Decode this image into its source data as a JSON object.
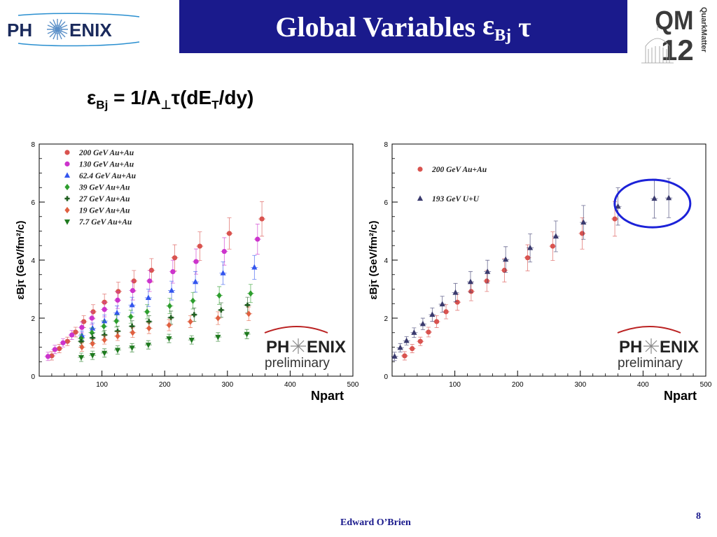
{
  "header": {
    "logo_left_text_a": "PH",
    "logo_left_text_b": "ENIX",
    "title_main": "Global Variables",
    "title_eps": "ε",
    "title_eps_sub": "Bj",
    "title_tau": "τ",
    "logo_right_top": "QM",
    "logo_right_bottom": "12",
    "logo_right_side": "QuarkMatter"
  },
  "formula": {
    "eps": "ε",
    "eps_sub": "Bj",
    "eq": " = 1/A",
    "perp": "⊥",
    "tau": "τ",
    "de": "(dE",
    "de_sub": "T",
    "tail": "/dy)"
  },
  "watermark": {
    "line1a": "PH",
    "line1b": "ENIX",
    "line2": "preliminary"
  },
  "colors": {
    "title_bar": "#1a1a8c",
    "footer": "#1a1a8c"
  },
  "chart_data": [
    {
      "type": "scatter",
      "ylabel": "εBjτ (GeV/fm²/c)",
      "xlabel": "Npart",
      "xlim": [
        0,
        500
      ],
      "ylim": [
        0,
        8
      ],
      "xticks": [
        100,
        200,
        300,
        400,
        500
      ],
      "yticks": [
        0,
        2,
        4,
        6,
        8
      ],
      "legend_position": "top-left",
      "series": [
        {
          "name": "200  GeV Au+Au",
          "marker": "circle",
          "color": "#d9534f",
          "x": [
            20,
            32,
            45,
            58,
            71,
            86,
            104,
            126,
            151,
            179,
            216,
            256,
            303,
            355
          ],
          "y": [
            0.7,
            0.95,
            1.2,
            1.52,
            1.88,
            2.22,
            2.55,
            2.92,
            3.28,
            3.65,
            4.08,
            4.48,
            4.92,
            5.42
          ]
        },
        {
          "name": "130  GeV Au+Au",
          "marker": "circle",
          "color": "#cc33cc",
          "x": [
            14,
            25,
            38,
            52,
            68,
            84,
            104,
            125,
            149,
            176,
            213,
            250,
            295,
            348
          ],
          "y": [
            0.68,
            0.92,
            1.15,
            1.42,
            1.68,
            2.0,
            2.3,
            2.62,
            2.95,
            3.28,
            3.6,
            3.95,
            4.3,
            4.72
          ]
        },
        {
          "name": "62.4 GeV Au+Au",
          "marker": "triangle",
          "color": "#3355ee",
          "x": [
            68,
            85,
            104,
            124,
            148,
            174,
            211,
            249,
            293,
            343
          ],
          "y": [
            1.4,
            1.65,
            1.9,
            2.18,
            2.45,
            2.7,
            2.95,
            3.25,
            3.55,
            3.75
          ]
        },
        {
          "name": "39   GeV Au+Au",
          "marker": "diamond",
          "color": "#2e9e2e",
          "x": [
            67,
            84,
            103,
            123,
            146,
            172,
            208,
            245,
            287,
            337
          ],
          "y": [
            1.3,
            1.5,
            1.72,
            1.9,
            2.05,
            2.22,
            2.42,
            2.6,
            2.78,
            2.85
          ]
        },
        {
          "name": "27   GeV Au+Au",
          "marker": "cross",
          "color": "#1f5e1f",
          "x": [
            67,
            85,
            104,
            125,
            148,
            175,
            210,
            247,
            290,
            332
          ],
          "y": [
            1.2,
            1.32,
            1.42,
            1.55,
            1.72,
            1.88,
            2.02,
            2.12,
            2.28,
            2.45
          ]
        },
        {
          "name": "19   GeV Au+Au",
          "marker": "diamond",
          "color": "#e06040",
          "x": [
            68,
            85,
            104,
            125,
            149,
            175,
            207,
            241,
            285,
            334
          ],
          "y": [
            1.0,
            1.12,
            1.25,
            1.38,
            1.5,
            1.65,
            1.76,
            1.88,
            2.0,
            2.15
          ]
        },
        {
          "name": "7.7  GeV Au+Au",
          "marker": "triangle-down",
          "color": "#1f7a1f",
          "x": [
            67,
            85,
            104,
            125,
            148,
            174,
            207,
            243,
            285,
            331
          ],
          "y": [
            0.65,
            0.72,
            0.8,
            0.9,
            0.98,
            1.08,
            1.3,
            1.25,
            1.35,
            1.45
          ]
        }
      ]
    },
    {
      "type": "scatter",
      "ylabel": "εBjτ (GeV/fm²/c)",
      "xlabel": "Npart",
      "xlim": [
        0,
        500
      ],
      "ylim": [
        0,
        8
      ],
      "xticks": [
        100,
        200,
        300,
        400,
        500
      ],
      "yticks": [
        0,
        2,
        4,
        6,
        8
      ],
      "legend_position": "top-left",
      "series": [
        {
          "name": "200 GeV Au+Au",
          "marker": "circle",
          "color": "#d9534f",
          "x": [
            20,
            32,
            45,
            58,
            71,
            86,
            104,
            126,
            151,
            179,
            216,
            256,
            303,
            355
          ],
          "y": [
            0.7,
            0.95,
            1.2,
            1.52,
            1.88,
            2.22,
            2.55,
            2.92,
            3.28,
            3.65,
            4.08,
            4.48,
            4.92,
            5.42
          ]
        },
        {
          "name": "193 GeV U+U",
          "marker": "triangle",
          "color": "#3a3a6e",
          "x": [
            4,
            13,
            23,
            35,
            49,
            64,
            80,
            101,
            125,
            152,
            181,
            220,
            261,
            305,
            360,
            418,
            441
          ],
          "y": [
            0.68,
            0.98,
            1.22,
            1.5,
            1.8,
            2.12,
            2.48,
            2.88,
            3.25,
            3.6,
            4.02,
            4.42,
            4.82,
            5.3,
            5.85,
            6.12,
            6.14
          ]
        }
      ]
    }
  ],
  "footer": {
    "author": "Edward O’Brien",
    "page": "8"
  }
}
